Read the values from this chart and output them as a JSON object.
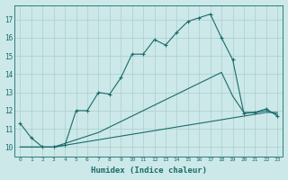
{
  "xlabel": "Humidex (Indice chaleur)",
  "ylabel": "",
  "background_color": "#cce8e8",
  "grid_color": "#aacfcf",
  "line_color": "#1a6b6b",
  "xlim": [
    -0.5,
    23.5
  ],
  "ylim": [
    9.5,
    17.8
  ],
  "xticks": [
    0,
    1,
    2,
    3,
    4,
    5,
    6,
    7,
    8,
    9,
    10,
    11,
    12,
    13,
    14,
    15,
    16,
    17,
    18,
    19,
    20,
    21,
    22,
    23
  ],
  "yticks": [
    10,
    11,
    12,
    13,
    14,
    15,
    16,
    17
  ],
  "series": [
    {
      "x": [
        0,
        1,
        2,
        3,
        4,
        5,
        6,
        7,
        8,
        9,
        10,
        11,
        12,
        13,
        14,
        15,
        16,
        17,
        18,
        19,
        20,
        21,
        22,
        23
      ],
      "y": [
        10.0,
        10.0,
        10.0,
        10.0,
        10.1,
        10.2,
        10.3,
        10.4,
        10.5,
        10.6,
        10.7,
        10.8,
        10.9,
        11.0,
        11.1,
        11.2,
        11.3,
        11.4,
        11.5,
        11.6,
        11.7,
        11.8,
        11.9,
        11.9
      ],
      "marker": false
    },
    {
      "x": [
        0,
        1,
        2,
        3,
        4,
        5,
        6,
        7,
        8,
        9,
        10,
        11,
        12,
        13,
        14,
        15,
        16,
        17,
        18,
        19,
        20,
        21,
        22,
        23
      ],
      "y": [
        10.0,
        10.0,
        10.0,
        10.0,
        10.2,
        10.4,
        10.6,
        10.8,
        11.1,
        11.4,
        11.7,
        12.0,
        12.3,
        12.6,
        12.9,
        13.2,
        13.5,
        13.8,
        14.1,
        12.8,
        11.9,
        11.9,
        12.0,
        11.8
      ],
      "marker": false
    },
    {
      "x": [
        0,
        1,
        2,
        3,
        4,
        5,
        6,
        7,
        8,
        9,
        10,
        11,
        12,
        13,
        14,
        15,
        16,
        17,
        18,
        19,
        20,
        21,
        22,
        23
      ],
      "y": [
        11.3,
        10.5,
        10.0,
        10.0,
        10.1,
        12.0,
        12.0,
        13.0,
        12.9,
        13.8,
        15.1,
        15.1,
        15.9,
        15.6,
        16.3,
        16.9,
        17.1,
        17.3,
        16.0,
        14.8,
        11.85,
        11.9,
        12.1,
        11.7
      ],
      "marker": true
    }
  ]
}
